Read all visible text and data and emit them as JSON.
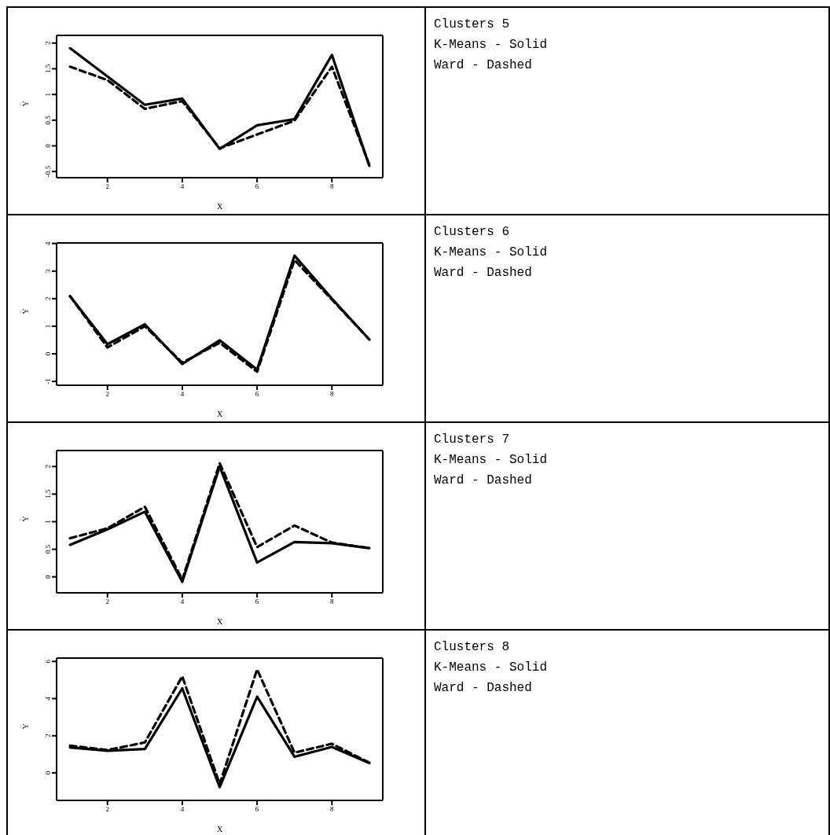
{
  "chart_data": [
    {
      "type": "line",
      "xlabel": "X",
      "ylabel": "Y",
      "annotations": [
        "Clusters 5",
        "K-Means - Solid",
        "Ward - Dashed"
      ],
      "xlim": [
        0.64,
        9.36
      ],
      "xticks": [
        2,
        4,
        6,
        8
      ],
      "ylim": [
        -0.62,
        2.15
      ],
      "yticks": [
        -0.5,
        0,
        0.5,
        1,
        1.5,
        2
      ],
      "x": [
        1,
        2,
        3,
        4,
        5,
        6,
        7,
        8,
        9
      ],
      "series": [
        {
          "color": "#000000",
          "line_style": "solid",
          "values": [
            1.9,
            1.35,
            0.8,
            0.92,
            -0.06,
            0.4,
            0.52,
            1.77,
            -0.39
          ]
        },
        {
          "color": "#000000",
          "line_style": "dashed",
          "values": [
            1.54,
            1.28,
            0.72,
            0.87,
            -0.05,
            0.22,
            0.49,
            1.54,
            -0.37
          ]
        }
      ]
    },
    {
      "type": "line",
      "xlabel": "X",
      "ylabel": "Y",
      "annotations": [
        "Clusters 6",
        "K-Means - Solid",
        "Ward - Dashed"
      ],
      "xlim": [
        0.64,
        9.36
      ],
      "xticks": [
        2,
        4,
        6,
        8
      ],
      "ylim": [
        -1.14,
        4.02
      ],
      "yticks": [
        -1,
        0,
        1,
        2,
        3,
        4
      ],
      "x": [
        1,
        2,
        3,
        4,
        5,
        6,
        7,
        8,
        9
      ],
      "series": [
        {
          "color": "#000000",
          "line_style": "solid",
          "values": [
            2.09,
            0.35,
            1.07,
            -0.37,
            0.49,
            -0.57,
            3.56,
            2.0,
            0.52
          ]
        },
        {
          "color": "#000000",
          "line_style": "dashed",
          "values": [
            2.09,
            0.23,
            1.0,
            -0.32,
            0.4,
            -0.65,
            3.4,
            1.97,
            0.52
          ]
        }
      ]
    },
    {
      "type": "line",
      "xlabel": "X",
      "ylabel": "Y",
      "annotations": [
        "Clusters 7",
        "K-Means - Solid",
        "Ward - Dashed"
      ],
      "xlim": [
        0.64,
        9.36
      ],
      "xticks": [
        2,
        4,
        6,
        8
      ],
      "ylim": [
        -0.29,
        2.29
      ],
      "yticks": [
        0,
        0.5,
        1,
        1.5,
        2
      ],
      "x": [
        1,
        2,
        3,
        4,
        5,
        6,
        7,
        8,
        9
      ],
      "series": [
        {
          "color": "#000000",
          "line_style": "solid",
          "values": [
            0.58,
            0.86,
            1.18,
            -0.09,
            2.0,
            0.26,
            0.63,
            0.61,
            0.52
          ]
        },
        {
          "color": "#000000",
          "line_style": "dashed",
          "values": [
            0.7,
            0.88,
            1.27,
            -0.05,
            2.06,
            0.54,
            0.93,
            0.62,
            0.52
          ]
        }
      ]
    },
    {
      "type": "line",
      "xlabel": "X",
      "ylabel": "Y",
      "annotations": [
        "Clusters 8",
        "K-Means - Solid",
        "Ward - Dashed"
      ],
      "xlim": [
        0.64,
        9.36
      ],
      "xticks": [
        2,
        4,
        6,
        8
      ],
      "ylim": [
        -1.48,
        6.18
      ],
      "yticks": [
        0,
        2,
        4,
        6
      ],
      "x": [
        1,
        2,
        3,
        4,
        5,
        6,
        7,
        8,
        9
      ],
      "series": [
        {
          "color": "#000000",
          "line_style": "solid",
          "values": [
            1.37,
            1.19,
            1.29,
            4.55,
            -0.77,
            4.1,
            0.87,
            1.4,
            0.53
          ]
        },
        {
          "color": "#000000",
          "line_style": "dashed",
          "values": [
            1.47,
            1.23,
            1.64,
            5.2,
            -0.6,
            5.57,
            1.09,
            1.57,
            0.55
          ]
        }
      ]
    }
  ]
}
